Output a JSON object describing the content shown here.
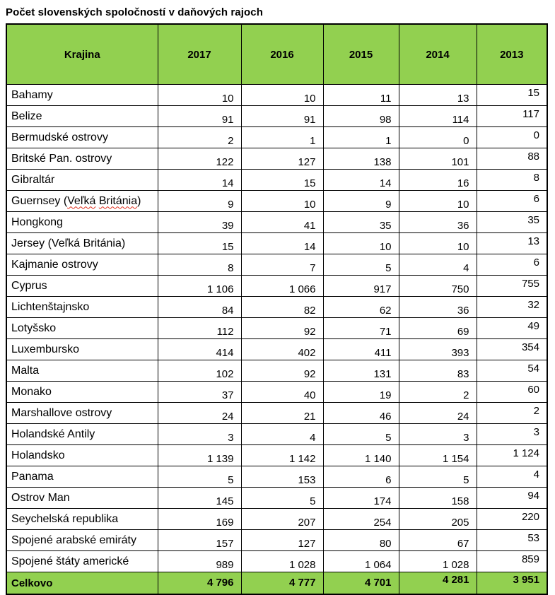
{
  "chart_data": {
    "type": "table",
    "title": "Počet slovenských spoločností v daňových rajoch",
    "columns": [
      "Krajina",
      "2017",
      "2016",
      "2015",
      "2014",
      "2013"
    ],
    "rows": [
      {
        "krajina": "Bahamy",
        "values": [
          "10",
          "10",
          "11",
          "13",
          "15"
        ]
      },
      {
        "krajina": "Belize",
        "values": [
          "91",
          "91",
          "98",
          "114",
          "117"
        ]
      },
      {
        "krajina": "Bermudské ostrovy",
        "values": [
          "2",
          "1",
          "1",
          "0",
          "0"
        ]
      },
      {
        "krajina": "Britské Pan. ostrovy",
        "values": [
          "122",
          "127",
          "138",
          "101",
          "88"
        ]
      },
      {
        "krajina": "Gibraltár",
        "values": [
          "14",
          "15",
          "14",
          "16",
          "8"
        ]
      },
      {
        "krajina": "Guernsey (Veľká Británia)",
        "values": [
          "9",
          "10",
          "9",
          "10",
          "6"
        ],
        "squiggle": "Veľká Británia"
      },
      {
        "krajina": "Hongkong",
        "values": [
          "39",
          "41",
          "35",
          "36",
          "35"
        ]
      },
      {
        "krajina": "Jersey (Veľká Británia)",
        "values": [
          "15",
          "14",
          "10",
          "10",
          "13"
        ]
      },
      {
        "krajina": "Kajmanie ostrovy",
        "values": [
          "8",
          "7",
          "5",
          "4",
          "6"
        ]
      },
      {
        "krajina": "Cyprus",
        "values": [
          "1 106",
          "1 066",
          "917",
          "750",
          "755"
        ]
      },
      {
        "krajina": "Lichtenštajnsko",
        "values": [
          "84",
          "82",
          "62",
          "36",
          "32"
        ]
      },
      {
        "krajina": "Lotyšsko",
        "values": [
          "112",
          "92",
          "71",
          "69",
          "49"
        ]
      },
      {
        "krajina": "Luxembursko",
        "values": [
          "414",
          "402",
          "411",
          "393",
          "354"
        ]
      },
      {
        "krajina": "Malta",
        "values": [
          "102",
          "92",
          "131",
          "83",
          "54"
        ]
      },
      {
        "krajina": "Monako",
        "values": [
          "37",
          "40",
          "19",
          "2",
          "60"
        ]
      },
      {
        "krajina": "Marshallove ostrovy",
        "values": [
          "24",
          "21",
          "46",
          "24",
          "2"
        ]
      },
      {
        "krajina": "Holandské Antily",
        "values": [
          "3",
          "4",
          "5",
          "3",
          "3"
        ]
      },
      {
        "krajina": "Holandsko",
        "values": [
          "1 139",
          "1 142",
          "1 140",
          "1 154",
          "1 124"
        ]
      },
      {
        "krajina": "Panama",
        "values": [
          "5",
          "153",
          "6",
          "5",
          "4"
        ]
      },
      {
        "krajina": "Ostrov Man",
        "values": [
          "145",
          "5",
          "174",
          "158",
          "94"
        ]
      },
      {
        "krajina": "Seychelská republika",
        "values": [
          "169",
          "207",
          "254",
          "205",
          "220"
        ]
      },
      {
        "krajina": "Spojené arabské emiráty",
        "values": [
          "157",
          "127",
          "80",
          "67",
          "53"
        ]
      },
      {
        "krajina": "Spojené štáty americké",
        "values": [
          "989",
          "1 028",
          "1 064",
          "1 028",
          "859"
        ]
      }
    ],
    "total_row": {
      "krajina": "Celkovo",
      "values": [
        "4 796",
        "4 777",
        "4 701",
        "4 281",
        "3 951"
      ]
    },
    "colors": {
      "header_bg": "#92d050",
      "total_bg": "#92d050",
      "border": "#000000",
      "spellcheck_squiggle": "#e0301e"
    },
    "layout_hints": {
      "numbers_align": "right",
      "country_align": "left",
      "raised_value_column": "2013",
      "raised_total_columns": [
        "2014",
        "2013"
      ]
    }
  }
}
